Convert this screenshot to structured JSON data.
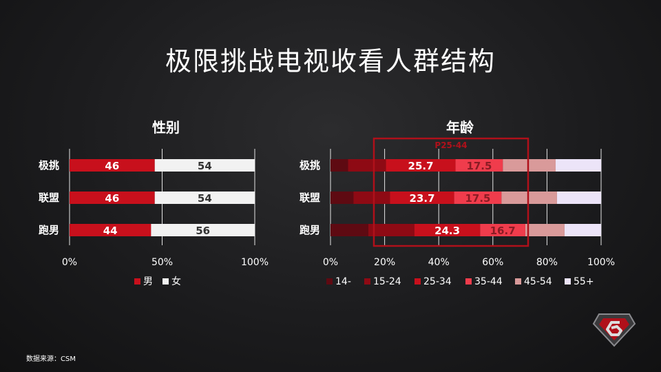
{
  "title": "极限挑战电视收看人群结构",
  "footnote": "数据来源：CSM",
  "chart_data": [
    {
      "type": "bar",
      "stacked": true,
      "orientation": "horizontal",
      "title": "性别",
      "categories": [
        "极挑",
        "联盟",
        "跑男"
      ],
      "series": [
        {
          "name": "男",
          "values": [
            46,
            46,
            44
          ],
          "color": "#c8101c",
          "label_color": "#ffffff"
        },
        {
          "name": "女",
          "values": [
            54,
            54,
            56
          ],
          "color": "#f2f2f2",
          "label_color": "#333333"
        }
      ],
      "xlim": [
        0,
        100
      ],
      "xticks": [
        "0%",
        "50%",
        "100%"
      ],
      "grid": true,
      "legend_position": "bottom"
    },
    {
      "type": "bar",
      "stacked": true,
      "orientation": "horizontal",
      "title": "年龄",
      "categories": [
        "极挑",
        "联盟",
        "跑男"
      ],
      "series": [
        {
          "name": "14-",
          "values": [
            6.5,
            8.5,
            14.0
          ],
          "color": "#5e0a12"
        },
        {
          "name": "15-24",
          "values": [
            14.0,
            13.5,
            17.0
          ],
          "color": "#8e0a14"
        },
        {
          "name": "25-34",
          "values": [
            25.7,
            23.7,
            24.3
          ],
          "color": "#c8101c",
          "shown": [
            "25.7",
            "23.7",
            "24.3"
          ],
          "label_color": "#ffffff"
        },
        {
          "name": "35-44",
          "values": [
            17.5,
            17.5,
            16.7
          ],
          "color": "#f03c4c",
          "shown": [
            "17.5",
            "17.5",
            "16.7"
          ],
          "label_color": "#8a1c24"
        },
        {
          "name": "45-54",
          "values": [
            19.5,
            20.5,
            14.5
          ],
          "color": "#d99a9a"
        },
        {
          "name": "55+",
          "values": [
            16.8,
            16.3,
            13.5
          ],
          "color": "#ece4f8"
        }
      ],
      "xlim": [
        0,
        100
      ],
      "xticks": [
        "0%",
        "20%",
        "40%",
        "60%",
        "80%",
        "100%"
      ],
      "grid": true,
      "legend_position": "bottom",
      "annotation": {
        "label": "P25-44",
        "color": "#b0101a"
      }
    }
  ]
}
